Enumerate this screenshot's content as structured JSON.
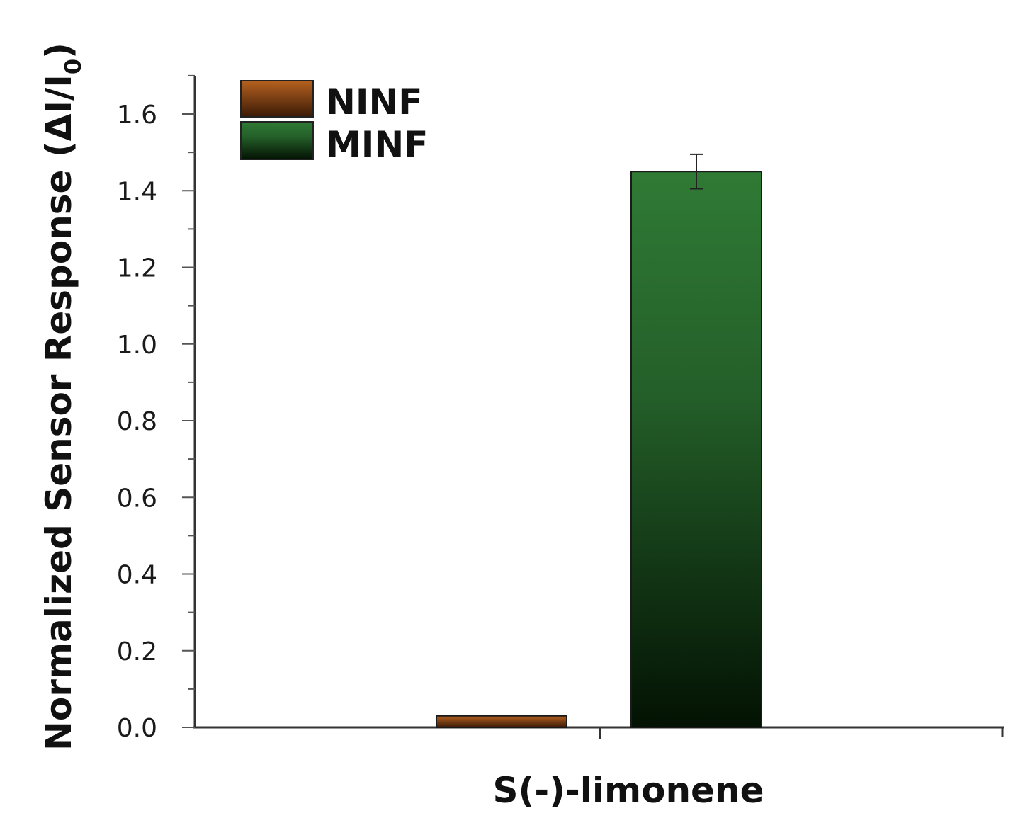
{
  "chart_data": {
    "type": "bar",
    "categories": [
      "S(-)-limonene"
    ],
    "series": [
      {
        "name": "NINF",
        "values": [
          0.03
        ],
        "color": "#b5611f",
        "color_dark": "#3a1a06"
      },
      {
        "name": "MINF",
        "values": [
          1.45
        ],
        "error": [
          0.045
        ],
        "color": "#2f7a35",
        "color_dark": "#031203"
      }
    ],
    "xlabel": "S(-)-limonene",
    "ylabel": "Normalized Sensor Response (ΔI/I",
    "ylabel_subscript": "0",
    "ylabel_close": ")",
    "ylim": [
      0,
      1.7
    ],
    "yticks": [
      "0.0",
      "0.2",
      "0.4",
      "0.6",
      "0.8",
      "1.0",
      "1.2",
      "1.4",
      "1.6"
    ],
    "ytick_values": [
      0,
      0.2,
      0.4,
      0.6,
      0.8,
      1.0,
      1.2,
      1.4,
      1.6
    ],
    "grid": false,
    "legend_position": "top-left"
  }
}
